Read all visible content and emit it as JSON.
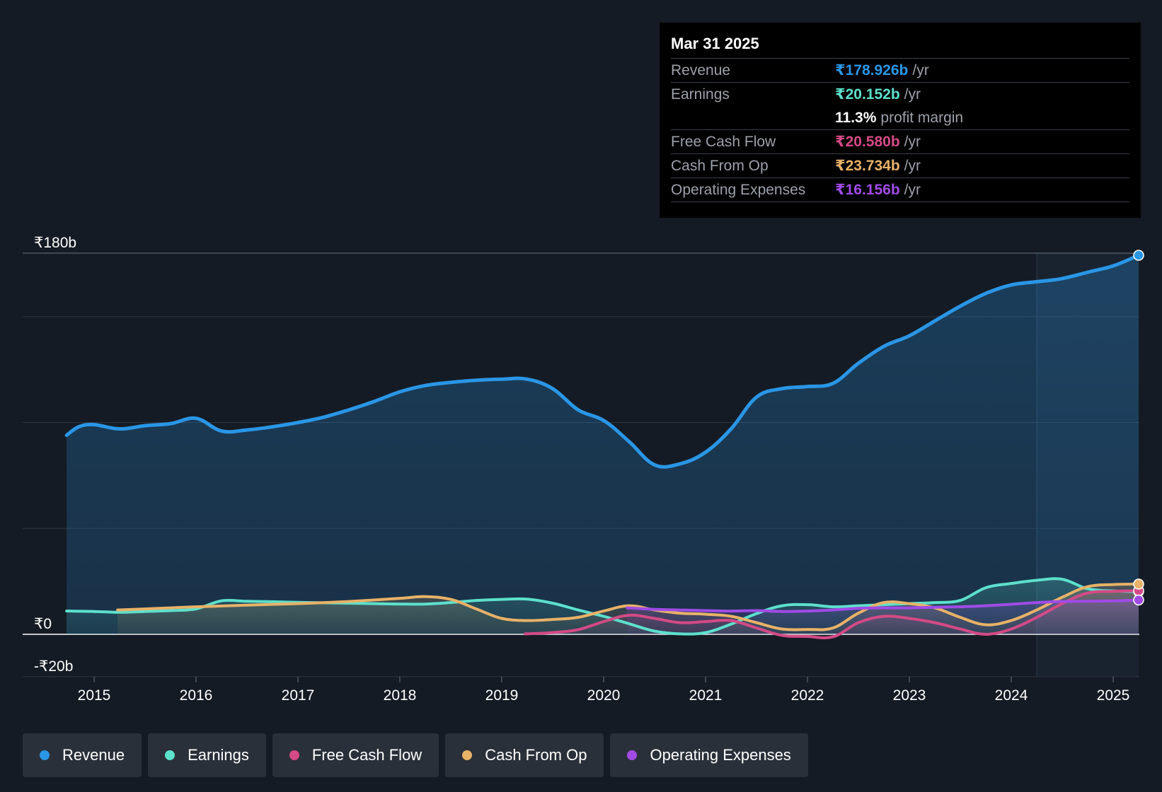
{
  "tooltip": {
    "date": "Mar 31 2025",
    "rows": [
      {
        "label": "Revenue",
        "value": "₹178.926b",
        "unit": "/yr",
        "color": "#2a96e6"
      },
      {
        "label": "Earnings",
        "value": "₹20.152b",
        "unit": "/yr",
        "color": "#5de0cc"
      },
      {
        "label": "",
        "value": "11.3%",
        "unit": "profit margin",
        "color": "#ffffff"
      },
      {
        "label": "Free Cash Flow",
        "value": "₹20.580b",
        "unit": "/yr",
        "color": "#d44a86"
      },
      {
        "label": "Cash From Op",
        "value": "₹23.734b",
        "unit": "/yr",
        "color": "#e8b268"
      },
      {
        "label": "Operating Expenses",
        "value": "₹16.156b",
        "unit": "/yr",
        "color": "#a04be6"
      }
    ]
  },
  "legend": [
    {
      "label": "Revenue",
      "color": "#2a96e6"
    },
    {
      "label": "Earnings",
      "color": "#5de0cc"
    },
    {
      "label": "Free Cash Flow",
      "color": "#d44a86"
    },
    {
      "label": "Cash From Op",
      "color": "#e8b268"
    },
    {
      "label": "Operating Expenses",
      "color": "#a04be6"
    }
  ],
  "chart_data": {
    "type": "line",
    "title": "",
    "xlabel": "",
    "ylabel": "",
    "ylim": [
      -20,
      180
    ],
    "xlim": [
      2014.73,
      2025.25
    ],
    "y_tick_labels": [
      {
        "value": 180,
        "label": "₹180b"
      },
      {
        "value": 0,
        "label": "₹0"
      },
      {
        "value": -20,
        "label": "-₹20b"
      }
    ],
    "gridlines": [
      180,
      150,
      100,
      50,
      0,
      -20
    ],
    "x_ticks": [
      {
        "value": 2015,
        "label": "2015"
      },
      {
        "value": 2016,
        "label": "2016"
      },
      {
        "value": 2017,
        "label": "2017"
      },
      {
        "value": 2018,
        "label": "2018"
      },
      {
        "value": 2019,
        "label": "2019"
      },
      {
        "value": 2020,
        "label": "2020"
      },
      {
        "value": 2021,
        "label": "2021"
      },
      {
        "value": 2022,
        "label": "2022"
      },
      {
        "value": 2023,
        "label": "2023"
      },
      {
        "value": 2024,
        "label": "2024"
      },
      {
        "value": 2025,
        "label": "2025"
      }
    ],
    "forecast_start": 2024.25,
    "series": [
      {
        "name": "Revenue",
        "color": "#2a96e6",
        "fill": true,
        "points": [
          [
            2014.73,
            94
          ],
          [
            2014.85,
            98
          ],
          [
            2015.0,
            99
          ],
          [
            2015.25,
            97
          ],
          [
            2015.5,
            98.5
          ],
          [
            2015.75,
            99.5
          ],
          [
            2016.0,
            102
          ],
          [
            2016.25,
            96
          ],
          [
            2016.5,
            96.5
          ],
          [
            2016.75,
            98
          ],
          [
            2017.0,
            100
          ],
          [
            2017.25,
            102.5
          ],
          [
            2017.5,
            106
          ],
          [
            2017.75,
            110
          ],
          [
            2018.0,
            114.5
          ],
          [
            2018.25,
            117.5
          ],
          [
            2018.5,
            119
          ],
          [
            2018.75,
            120
          ],
          [
            2019.0,
            120.5
          ],
          [
            2019.25,
            120.5
          ],
          [
            2019.5,
            116
          ],
          [
            2019.75,
            106
          ],
          [
            2020.0,
            101
          ],
          [
            2020.25,
            91
          ],
          [
            2020.5,
            80
          ],
          [
            2020.75,
            80.5
          ],
          [
            2021.0,
            86
          ],
          [
            2021.25,
            97
          ],
          [
            2021.5,
            112
          ],
          [
            2021.75,
            116
          ],
          [
            2022.0,
            117
          ],
          [
            2022.25,
            118.5
          ],
          [
            2022.5,
            128
          ],
          [
            2022.75,
            136
          ],
          [
            2023.0,
            141
          ],
          [
            2023.25,
            148
          ],
          [
            2023.5,
            155
          ],
          [
            2023.75,
            161
          ],
          [
            2024.0,
            165
          ],
          [
            2024.25,
            166.5
          ],
          [
            2024.5,
            168
          ],
          [
            2024.75,
            171
          ],
          [
            2025.0,
            174
          ],
          [
            2025.25,
            179
          ]
        ]
      },
      {
        "name": "Earnings",
        "color": "#5de0cc",
        "fill": true,
        "points": [
          [
            2014.73,
            11
          ],
          [
            2015.0,
            10.8
          ],
          [
            2015.25,
            10.4
          ],
          [
            2015.5,
            10.8
          ],
          [
            2015.75,
            11.2
          ],
          [
            2016.0,
            12
          ],
          [
            2016.25,
            15.8
          ],
          [
            2016.5,
            15.6
          ],
          [
            2016.75,
            15.4
          ],
          [
            2017.0,
            15.1
          ],
          [
            2017.25,
            14.9
          ],
          [
            2017.5,
            14.7
          ],
          [
            2017.75,
            14.5
          ],
          [
            2018.0,
            14.3
          ],
          [
            2018.25,
            14.3
          ],
          [
            2018.5,
            15
          ],
          [
            2018.75,
            16
          ],
          [
            2019.0,
            16.5
          ],
          [
            2019.25,
            16.6
          ],
          [
            2019.5,
            14.7
          ],
          [
            2019.75,
            11.5
          ],
          [
            2020.0,
            8.5
          ],
          [
            2020.25,
            5
          ],
          [
            2020.5,
            1.5
          ],
          [
            2020.75,
            0.2
          ],
          [
            2021.0,
            0.8
          ],
          [
            2021.25,
            4.8
          ],
          [
            2021.5,
            9.8
          ],
          [
            2021.75,
            13.5
          ],
          [
            2022.0,
            14
          ],
          [
            2022.25,
            13
          ],
          [
            2022.5,
            13.5
          ],
          [
            2022.75,
            14
          ],
          [
            2023.0,
            14.5
          ],
          [
            2023.25,
            15
          ],
          [
            2023.5,
            16
          ],
          [
            2023.75,
            22
          ],
          [
            2024.0,
            24
          ],
          [
            2024.25,
            25.5
          ],
          [
            2024.5,
            26
          ],
          [
            2024.75,
            21.5
          ],
          [
            2025.0,
            20.5
          ],
          [
            2025.25,
            20.2
          ]
        ]
      },
      {
        "name": "Free Cash Flow",
        "color": "#d44a86",
        "fill": true,
        "points": [
          [
            2019.23,
            0.2
          ],
          [
            2019.5,
            0.8
          ],
          [
            2019.75,
            2.2
          ],
          [
            2020.0,
            6
          ],
          [
            2020.25,
            9
          ],
          [
            2020.5,
            7.5
          ],
          [
            2020.75,
            5.5
          ],
          [
            2021.0,
            6
          ],
          [
            2021.25,
            6.5
          ],
          [
            2021.5,
            3
          ],
          [
            2021.75,
            -0.5
          ],
          [
            2022.0,
            -1
          ],
          [
            2022.25,
            -1.2
          ],
          [
            2022.5,
            5.5
          ],
          [
            2022.75,
            8.5
          ],
          [
            2023.0,
            7.5
          ],
          [
            2023.25,
            5.5
          ],
          [
            2023.5,
            2.5
          ],
          [
            2023.75,
            0
          ],
          [
            2024.0,
            2.5
          ],
          [
            2024.25,
            8
          ],
          [
            2024.5,
            14.5
          ],
          [
            2024.75,
            19.5
          ],
          [
            2025.0,
            20.3
          ],
          [
            2025.25,
            20.6
          ]
        ]
      },
      {
        "name": "Cash From Op",
        "color": "#e8b268",
        "fill": true,
        "points": [
          [
            2015.23,
            11.5
          ],
          [
            2015.5,
            12
          ],
          [
            2015.75,
            12.5
          ],
          [
            2016.0,
            13
          ],
          [
            2016.5,
            13.8
          ],
          [
            2017.0,
            14.5
          ],
          [
            2017.5,
            15.5
          ],
          [
            2018.0,
            17
          ],
          [
            2018.25,
            17.8
          ],
          [
            2018.5,
            16.5
          ],
          [
            2018.75,
            12
          ],
          [
            2019.0,
            7.5
          ],
          [
            2019.25,
            6.5
          ],
          [
            2019.5,
            7
          ],
          [
            2019.75,
            8
          ],
          [
            2020.0,
            11
          ],
          [
            2020.25,
            13.5
          ],
          [
            2020.5,
            11.5
          ],
          [
            2020.75,
            10
          ],
          [
            2021.0,
            9.5
          ],
          [
            2021.25,
            8.5
          ],
          [
            2021.5,
            5.5
          ],
          [
            2021.75,
            2.5
          ],
          [
            2022.0,
            2.3
          ],
          [
            2022.25,
            3
          ],
          [
            2022.5,
            10
          ],
          [
            2022.75,
            15
          ],
          [
            2023.0,
            14.5
          ],
          [
            2023.25,
            12.5
          ],
          [
            2023.5,
            8
          ],
          [
            2023.75,
            4.5
          ],
          [
            2024.0,
            6.5
          ],
          [
            2024.25,
            11.5
          ],
          [
            2024.5,
            17.5
          ],
          [
            2024.75,
            22.5
          ],
          [
            2025.0,
            23.5
          ],
          [
            2025.25,
            23.7
          ]
        ]
      },
      {
        "name": "Operating Expenses",
        "color": "#a04be6",
        "fill": true,
        "points": [
          [
            2020.23,
            12.5
          ],
          [
            2020.5,
            11.8
          ],
          [
            2020.75,
            11.5
          ],
          [
            2021.0,
            11.2
          ],
          [
            2021.25,
            11
          ],
          [
            2021.5,
            11.2
          ],
          [
            2021.75,
            10.8
          ],
          [
            2022.0,
            11
          ],
          [
            2022.25,
            11.5
          ],
          [
            2022.5,
            12.3
          ],
          [
            2022.75,
            12.5
          ],
          [
            2023.0,
            12.5
          ],
          [
            2023.25,
            12.8
          ],
          [
            2023.5,
            13
          ],
          [
            2023.75,
            13.5
          ],
          [
            2024.0,
            14.2
          ],
          [
            2024.25,
            15
          ],
          [
            2024.5,
            15.5
          ],
          [
            2024.75,
            15.6
          ],
          [
            2025.0,
            15.8
          ],
          [
            2025.25,
            16.2
          ]
        ]
      }
    ]
  }
}
